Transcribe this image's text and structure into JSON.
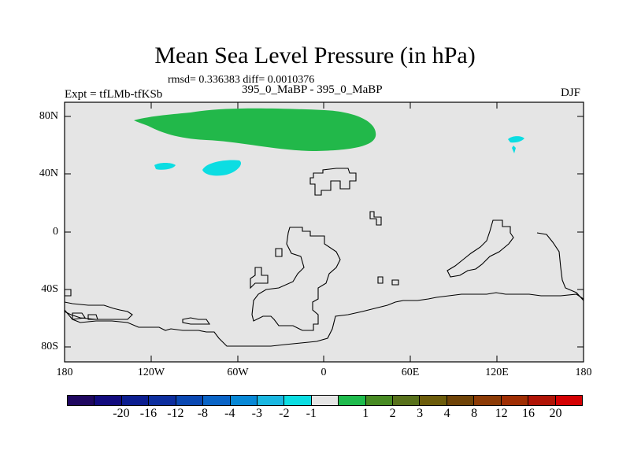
{
  "title": "Mean Sea Level Pressure (in hPa)",
  "stats": "rmsd= 0.336383 diff= 0.0010376",
  "left_label": "Expt = tfLMb-tfKSb",
  "center_label": "395_0_MaBP - 395_0_MaBP",
  "season": "DJF",
  "axes": {
    "lat_labels": [
      "80N",
      "40N",
      "0",
      "40S",
      "80S"
    ],
    "lon_labels": [
      "180",
      "120W",
      "60W",
      "0",
      "60E",
      "120E",
      "180"
    ]
  },
  "colorbar": {
    "colors": [
      "#1f0760",
      "#120b7e",
      "#0c1e90",
      "#0d2e9e",
      "#0a48b2",
      "#0a64c6",
      "#0888d6",
      "#1ab7e1",
      "#0cdde2",
      "#e5e5e5",
      "#1fbb4d",
      "#478a22",
      "#58711b",
      "#6c5c0b",
      "#6f4307",
      "#8c3b06",
      "#9f2e03",
      "#b01406",
      "#d40103"
    ],
    "labels": [
      "-20",
      "-16",
      "-12",
      "-8",
      "-4",
      "-3",
      "-2",
      "-1",
      "1",
      "2",
      "3",
      "4",
      "8",
      "12",
      "16",
      "20"
    ]
  },
  "map_colors": {
    "background": "#e5e5e5",
    "positive": "#22b84a",
    "negative": "#0cdde2",
    "coast": "#000000"
  }
}
